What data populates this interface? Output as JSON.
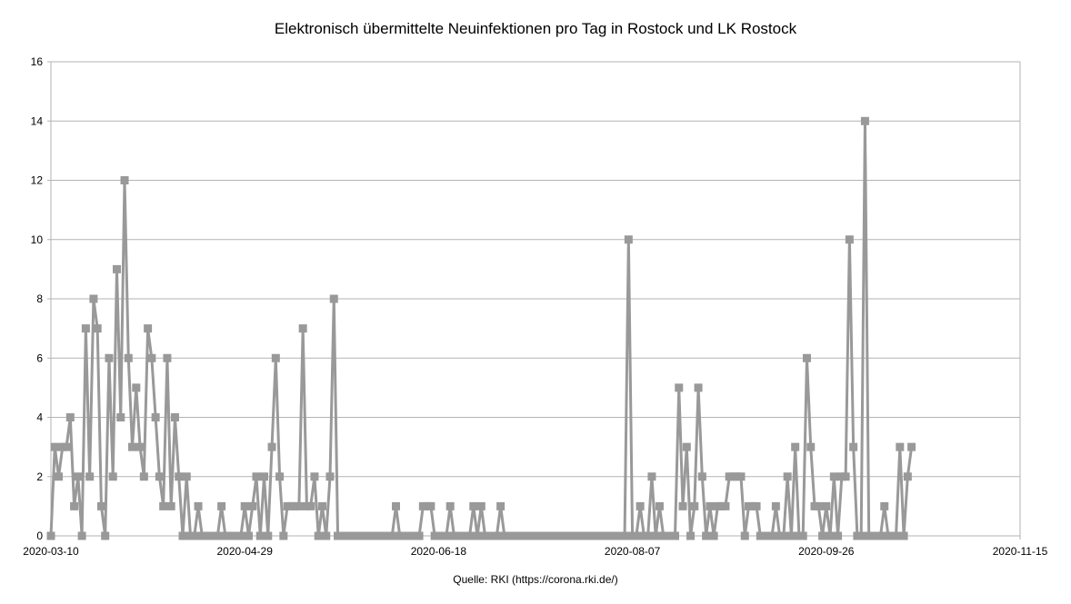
{
  "chart_data": {
    "type": "line",
    "title": "Elektronisch übermittelte Neuinfektionen pro Tag in Rostock und LK Rostock",
    "source": "Quelle: RKI (https://corona.rki.de/)",
    "xlabel": "",
    "ylabel": "",
    "x_start": "2020-03-10",
    "x_range": [
      "2020-03-10",
      "2020-11-15"
    ],
    "x_ticks": [
      "2020-03-10",
      "2020-04-29",
      "2020-06-18",
      "2020-08-07",
      "2020-09-26",
      "2020-11-15"
    ],
    "ylim": [
      0,
      16
    ],
    "y_ticks": [
      "0",
      "2",
      "4",
      "6",
      "8",
      "10",
      "12",
      "14",
      "16"
    ],
    "grid": true,
    "legend": "none",
    "series": [
      {
        "color": "#999999",
        "marker": "square",
        "values": [
          0,
          3,
          2,
          3,
          3,
          4,
          1,
          2,
          0,
          7,
          2,
          8,
          7,
          1,
          0,
          6,
          2,
          9,
          4,
          12,
          6,
          3,
          5,
          3,
          2,
          7,
          6,
          4,
          2,
          1,
          6,
          1,
          4,
          2,
          0,
          2,
          0,
          0,
          1,
          0,
          0,
          0,
          0,
          0,
          1,
          0,
          0,
          0,
          0,
          0,
          1,
          0,
          1,
          2,
          0,
          2,
          0,
          3,
          6,
          2,
          0,
          1,
          1,
          1,
          1,
          7,
          1,
          1,
          2,
          0,
          1,
          0,
          2,
          8,
          0,
          0,
          0,
          0,
          0,
          0,
          0,
          0,
          0,
          0,
          0,
          0,
          0,
          0,
          0,
          1,
          0,
          0,
          0,
          0,
          0,
          0,
          1,
          1,
          1,
          0,
          0,
          0,
          0,
          1,
          0,
          0,
          0,
          0,
          0,
          1,
          0,
          1,
          0,
          0,
          0,
          0,
          1,
          0,
          0,
          0,
          0,
          0,
          0,
          0,
          0,
          0,
          0,
          0,
          0,
          0,
          0,
          0,
          0,
          0,
          0,
          0,
          0,
          0,
          0,
          0,
          0,
          0,
          0,
          0,
          0,
          0,
          0,
          0,
          0,
          10,
          0,
          0,
          1,
          0,
          0,
          2,
          0,
          1,
          0,
          0,
          0,
          0,
          5,
          1,
          3,
          0,
          1,
          5,
          2,
          0,
          1,
          0,
          1,
          1,
          1,
          2,
          2,
          2,
          2,
          0,
          1,
          1,
          1,
          0,
          0,
          0,
          0,
          1,
          0,
          0,
          2,
          0,
          3,
          0,
          0,
          6,
          3,
          1,
          1,
          0,
          1,
          0,
          2,
          0,
          2,
          2,
          10,
          3,
          0,
          0,
          14,
          0,
          0,
          0,
          0,
          1,
          0,
          0,
          0,
          3,
          0,
          2,
          3
        ]
      }
    ]
  }
}
